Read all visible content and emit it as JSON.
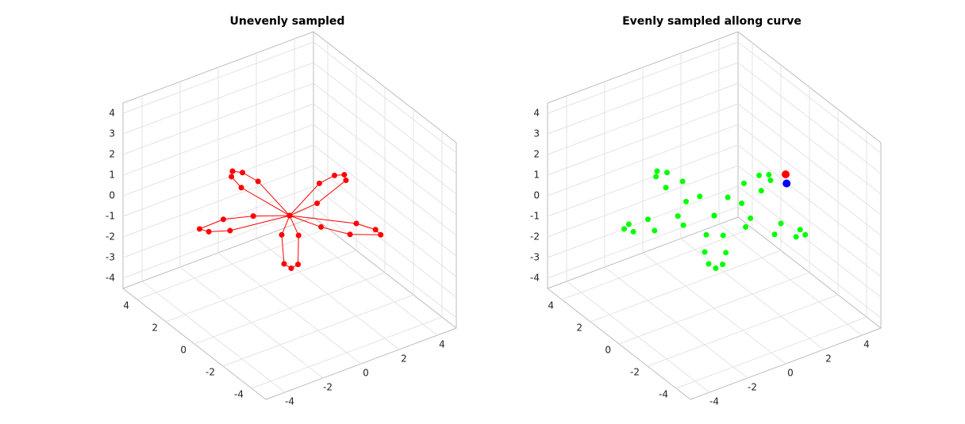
{
  "chart_data": [
    {
      "type": "scatter3d",
      "title": "Unevenly sampled",
      "series": [
        {
          "color": "#ff0000",
          "line": true,
          "x": [
            4,
            3.69,
            2.8,
            0,
            -1.41,
            -3.16,
            -3.24,
            -2.81,
            -0.99,
            0,
            1.28,
            1.42,
            1.24,
            0.86,
            0.12,
            0,
            0.44,
            0.86,
            1.24,
            1.28,
            0.8,
            0,
            -2.0,
            -2.81,
            -3.24,
            -2.52,
            -1.41,
            0,
            2.8,
            3.69,
            4
          ],
          "y": [
            0,
            0.29,
            0.44,
            0,
            -0.59,
            -1.93,
            -2.35,
            -2.4,
            -1.16,
            0,
            2.52,
            3.42,
            3.8,
            3.6,
            1.53,
            0,
            -2.8,
            -3.6,
            -3.8,
            -2.52,
            -1.31,
            0,
            2.0,
            2.4,
            2.35,
            1.28,
            0.59,
            0,
            -0.44,
            -0.29,
            0
          ],
          "z": [
            0,
            0,
            0,
            0,
            0,
            0,
            0,
            0,
            0,
            0,
            0,
            0,
            0,
            0,
            0,
            0,
            0,
            0,
            0,
            0,
            0,
            0,
            0,
            0,
            0,
            0,
            0,
            0,
            0,
            0,
            0
          ]
        }
      ],
      "xlim": [
        -5,
        5
      ],
      "ylim": [
        -5,
        5
      ],
      "zlim": [
        -4.5,
        4.5
      ],
      "xticks": [
        -4,
        -2,
        0,
        2,
        4
      ],
      "yticks": [
        -4,
        -2,
        0,
        2,
        4
      ],
      "zticks": [
        -4,
        -3,
        -2,
        -1,
        0,
        1,
        2,
        3,
        4
      ],
      "grid": true
    },
    {
      "type": "scatter3d",
      "title": "Evenly sampled allong curve",
      "series": [
        {
          "color": "#00ff00",
          "line": false,
          "x": [
            4,
            3.69,
            2.8,
            1.49,
            0,
            -1.41,
            -2.52,
            -3.16,
            -3.24,
            -2.81,
            -2.0,
            -0.99,
            0,
            0.8,
            1.28,
            1.42,
            1.24,
            0.86,
            0.44,
            0.12,
            0,
            0.12,
            0.44,
            0.86,
            1.24,
            1.42,
            1.28,
            0.8,
            0,
            -0.99,
            -2.0,
            -2.81,
            -3.24,
            -3.16,
            -2.52,
            -1.41,
            0,
            1.49,
            2.8,
            3.69,
            4
          ],
          "y": [
            0,
            0.29,
            0.44,
            0.36,
            0,
            -0.59,
            -1.28,
            -1.93,
            -2.35,
            -2.4,
            -2.0,
            -1.16,
            0,
            1.31,
            2.52,
            3.42,
            3.8,
            3.6,
            2.8,
            1.53,
            0,
            -1.53,
            -2.8,
            -3.6,
            -3.8,
            -3.42,
            -2.52,
            -1.31,
            0,
            1.16,
            2.0,
            2.4,
            2.35,
            1.93,
            1.28,
            0.59,
            0,
            -0.36,
            -0.44,
            -0.29,
            0
          ],
          "z": [
            0,
            0,
            0,
            0,
            0,
            0,
            0,
            0,
            0,
            0,
            0,
            0,
            0,
            0,
            0,
            0,
            0,
            0,
            0,
            0,
            0,
            0,
            0,
            0,
            0,
            0,
            0,
            0,
            0,
            0,
            0,
            0,
            0,
            0,
            0,
            0,
            0,
            0,
            0,
            0,
            0
          ]
        },
        {
          "color": "#ff0000",
          "line": false,
          "x": [
            -1.0
          ],
          "y": [
            3.0
          ],
          "z": [
            1.5
          ]
        },
        {
          "color": "#0000ff",
          "line": false,
          "x": [
            -1.2
          ],
          "y": [
            2.9
          ],
          "z": [
            1.2
          ]
        }
      ],
      "xlim": [
        -5,
        5
      ],
      "ylim": [
        -5,
        5
      ],
      "zlim": [
        -4.5,
        4.5
      ],
      "xticks": [
        -4,
        -2,
        0,
        2,
        4
      ],
      "yticks": [
        -4,
        -2,
        0,
        2,
        4
      ],
      "zticks": [
        -4,
        -3,
        -2,
        -1,
        0,
        1,
        2,
        3,
        4
      ],
      "grid": true
    }
  ]
}
